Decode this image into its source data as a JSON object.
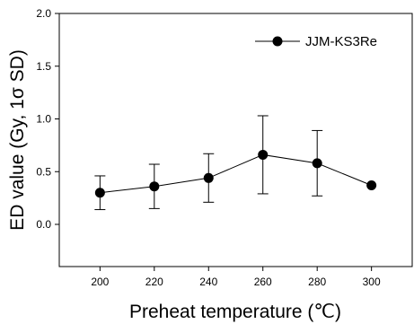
{
  "chart_data": {
    "type": "line",
    "title": "",
    "xlabel": "Preheat temperature (℃)",
    "ylabel": "ED value (Gy, 1σ SD)",
    "x": [
      200,
      220,
      240,
      260,
      280,
      300
    ],
    "series": [
      {
        "name": "JJM-KS3Re",
        "values": [
          0.3,
          0.36,
          0.44,
          0.66,
          0.58,
          0.37
        ],
        "error": [
          0.16,
          0.21,
          0.23,
          0.37,
          0.31,
          0.0
        ],
        "marker": "filled-circle",
        "color": "#000000"
      }
    ],
    "xlim": [
      185,
      315
    ],
    "ylim": [
      -0.4,
      2.0
    ],
    "xticks": [
      "200",
      "220",
      "240",
      "260",
      "280",
      "300"
    ],
    "yticks": [
      "0.0",
      "0.5",
      "1.0",
      "1.5",
      "2.0"
    ],
    "legend_position": "top-right",
    "grid": false
  }
}
